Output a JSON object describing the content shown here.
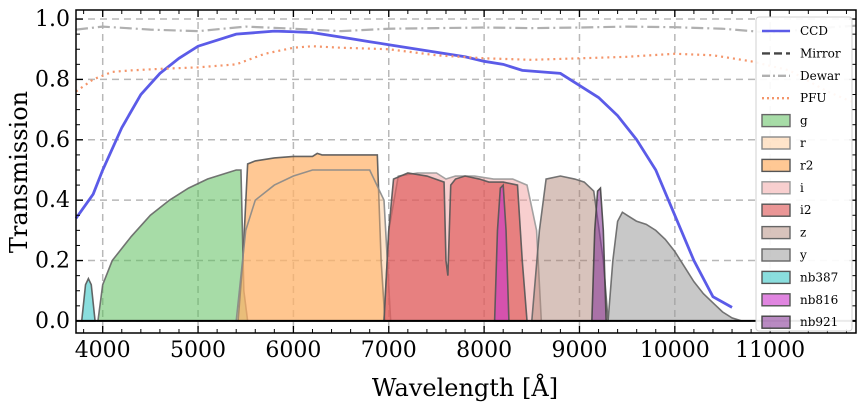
{
  "chart_data": {
    "type": "area",
    "xlabel": "Wavelength [Å]",
    "ylabel": "Transmission",
    "xlim": [
      3720,
      11900
    ],
    "ylim": [
      -0.04,
      1.03
    ],
    "xticks": [
      4000,
      5000,
      6000,
      7000,
      8000,
      9000,
      10000,
      11000
    ],
    "yticks": [
      0.0,
      0.2,
      0.4,
      0.6,
      0.8,
      1.0
    ],
    "grid": true,
    "legend_position": "right",
    "lines": [
      {
        "name": "CCD",
        "style": "solid",
        "color": "#5b5be8",
        "x": [
          3720,
          3900,
          4000,
          4200,
          4400,
          4600,
          4800,
          5000,
          5200,
          5400,
          5600,
          5800,
          6000,
          6200,
          6400,
          6600,
          6800,
          7000,
          7200,
          7400,
          7600,
          7800,
          8000,
          8200,
          8400,
          8600,
          8800,
          9000,
          9200,
          9400,
          9600,
          9800,
          10000,
          10200,
          10400,
          10600
        ],
        "y": [
          0.34,
          0.42,
          0.5,
          0.64,
          0.75,
          0.82,
          0.87,
          0.91,
          0.93,
          0.95,
          0.955,
          0.96,
          0.958,
          0.955,
          0.945,
          0.935,
          0.925,
          0.915,
          0.905,
          0.895,
          0.885,
          0.875,
          0.86,
          0.85,
          0.83,
          0.825,
          0.82,
          0.78,
          0.74,
          0.68,
          0.6,
          0.5,
          0.35,
          0.2,
          0.08,
          0.045
        ]
      },
      {
        "name": "Mirror",
        "style": "dashed",
        "color": "#444444",
        "x": [],
        "y": []
      },
      {
        "name": "Dewar",
        "style": "dashdot",
        "color": "#b0b0b0",
        "x": [
          3720,
          4000,
          4500,
          5000,
          5500,
          6000,
          6500,
          7000,
          7500,
          8000,
          8500,
          9000,
          9500,
          10000,
          10500,
          11000,
          11500,
          11900
        ],
        "y": [
          0.965,
          0.975,
          0.965,
          0.96,
          0.975,
          0.968,
          0.96,
          0.968,
          0.97,
          0.972,
          0.97,
          0.972,
          0.975,
          0.973,
          0.968,
          0.955,
          0.97,
          0.978
        ]
      },
      {
        "name": "PFU",
        "style": "dotted",
        "color": "#f4956a",
        "x": [
          3720,
          3900,
          4100,
          4300,
          4600,
          5000,
          5400,
          5700,
          6000,
          6200,
          6500,
          7000,
          7500,
          8000,
          8500,
          9000,
          9500,
          10000,
          10400,
          10800,
          11200,
          11600,
          11900
        ],
        "y": [
          0.76,
          0.8,
          0.825,
          0.83,
          0.835,
          0.84,
          0.85,
          0.885,
          0.905,
          0.91,
          0.905,
          0.9,
          0.88,
          0.87,
          0.865,
          0.87,
          0.875,
          0.885,
          0.88,
          0.86,
          0.83,
          0.76,
          0.72
        ]
      }
    ],
    "bands": [
      {
        "name": "g",
        "color": "#5fbf5f",
        "opacity": 0.55,
        "edge": "#666666",
        "x": [
          3950,
          4000,
          4100,
          4300,
          4500,
          4700,
          4900,
          5100,
          5300,
          5400,
          5450,
          5480,
          5520
        ],
        "y": [
          0.0,
          0.12,
          0.2,
          0.28,
          0.35,
          0.4,
          0.44,
          0.47,
          0.49,
          0.5,
          0.5,
          0.1,
          0.0
        ]
      },
      {
        "name": "r2",
        "color": "#ff9a3c",
        "opacity": 0.55,
        "edge": "#555555",
        "x": [
          5420,
          5470,
          5520,
          5600,
          5800,
          6000,
          6200,
          6250,
          6300,
          6400,
          6600,
          6800,
          6880,
          6920,
          6960
        ],
        "y": [
          0.0,
          0.2,
          0.52,
          0.53,
          0.54,
          0.545,
          0.545,
          0.555,
          0.55,
          0.55,
          0.55,
          0.55,
          0.55,
          0.2,
          0.0
        ]
      },
      {
        "name": "r",
        "color": "#ffc48a",
        "opacity": 0.45,
        "edge": "#888888",
        "x": [
          5400,
          5500,
          5600,
          5800,
          6000,
          6200,
          6400,
          6600,
          6800,
          6950,
          7020
        ],
        "y": [
          0.0,
          0.3,
          0.4,
          0.45,
          0.48,
          0.5,
          0.5,
          0.5,
          0.5,
          0.4,
          0.0
        ]
      },
      {
        "name": "i",
        "color": "#f2a0a0",
        "opacity": 0.5,
        "edge": "#999999",
        "x": [
          6950,
          7000,
          7100,
          7300,
          7500,
          7600,
          7700,
          7900,
          8100,
          8300,
          8450,
          8550,
          8600
        ],
        "y": [
          0.0,
          0.3,
          0.48,
          0.49,
          0.49,
          0.47,
          0.48,
          0.48,
          0.47,
          0.47,
          0.45,
          0.3,
          0.0
        ]
      },
      {
        "name": "i2",
        "color": "#d94040",
        "opacity": 0.55,
        "edge": "#555555",
        "x": [
          6950,
          7000,
          7050,
          7200,
          7400,
          7580,
          7600,
          7620,
          7650,
          7700,
          7800,
          7950,
          8050,
          8200,
          8350,
          8400,
          8450
        ],
        "y": [
          0.0,
          0.3,
          0.47,
          0.49,
          0.48,
          0.46,
          0.2,
          0.15,
          0.45,
          0.47,
          0.48,
          0.47,
          0.46,
          0.46,
          0.45,
          0.2,
          0.0
        ]
      },
      {
        "name": "z",
        "color": "#a87a6a",
        "opacity": 0.45,
        "edge": "#666666",
        "x": [
          8500,
          8580,
          8650,
          8800,
          8950,
          9050,
          9150,
          9250,
          9300
        ],
        "y": [
          0.0,
          0.3,
          0.47,
          0.48,
          0.47,
          0.46,
          0.43,
          0.2,
          0.0
        ]
      },
      {
        "name": "y",
        "color": "#9a9a9a",
        "opacity": 0.55,
        "edge": "#666666",
        "x": [
          9300,
          9350,
          9400,
          9450,
          9500,
          9550,
          9600,
          9700,
          9800,
          9900,
          10000,
          10100,
          10200,
          10300,
          10400,
          10500,
          10600,
          10700,
          10800
        ],
        "y": [
          0.0,
          0.2,
          0.33,
          0.36,
          0.35,
          0.34,
          0.33,
          0.32,
          0.3,
          0.27,
          0.23,
          0.18,
          0.13,
          0.09,
          0.06,
          0.03,
          0.01,
          0.0,
          0.0
        ]
      },
      {
        "name": "nb387",
        "color": "#3cc8c8",
        "opacity": 0.6,
        "edge": "#555555",
        "x": [
          3780,
          3820,
          3850,
          3880,
          3920
        ],
        "y": [
          0.0,
          0.12,
          0.14,
          0.12,
          0.0
        ]
      },
      {
        "name": "nb816",
        "color": "#cc33cc",
        "opacity": 0.6,
        "edge": "#555555",
        "x": [
          8110,
          8140,
          8170,
          8200,
          8230,
          8260
        ],
        "y": [
          0.0,
          0.3,
          0.44,
          0.45,
          0.3,
          0.0
        ]
      },
      {
        "name": "nb921",
        "color": "#8a3c9a",
        "opacity": 0.6,
        "edge": "#444444",
        "x": [
          9130,
          9160,
          9190,
          9220,
          9250,
          9280
        ],
        "y": [
          0.0,
          0.3,
          0.43,
          0.44,
          0.3,
          0.0
        ]
      }
    ],
    "legend_order": [
      "CCD",
      "Mirror",
      "Dewar",
      "PFU",
      "g",
      "r",
      "r2",
      "i",
      "i2",
      "z",
      "y",
      "nb387",
      "nb816",
      "nb921"
    ]
  }
}
